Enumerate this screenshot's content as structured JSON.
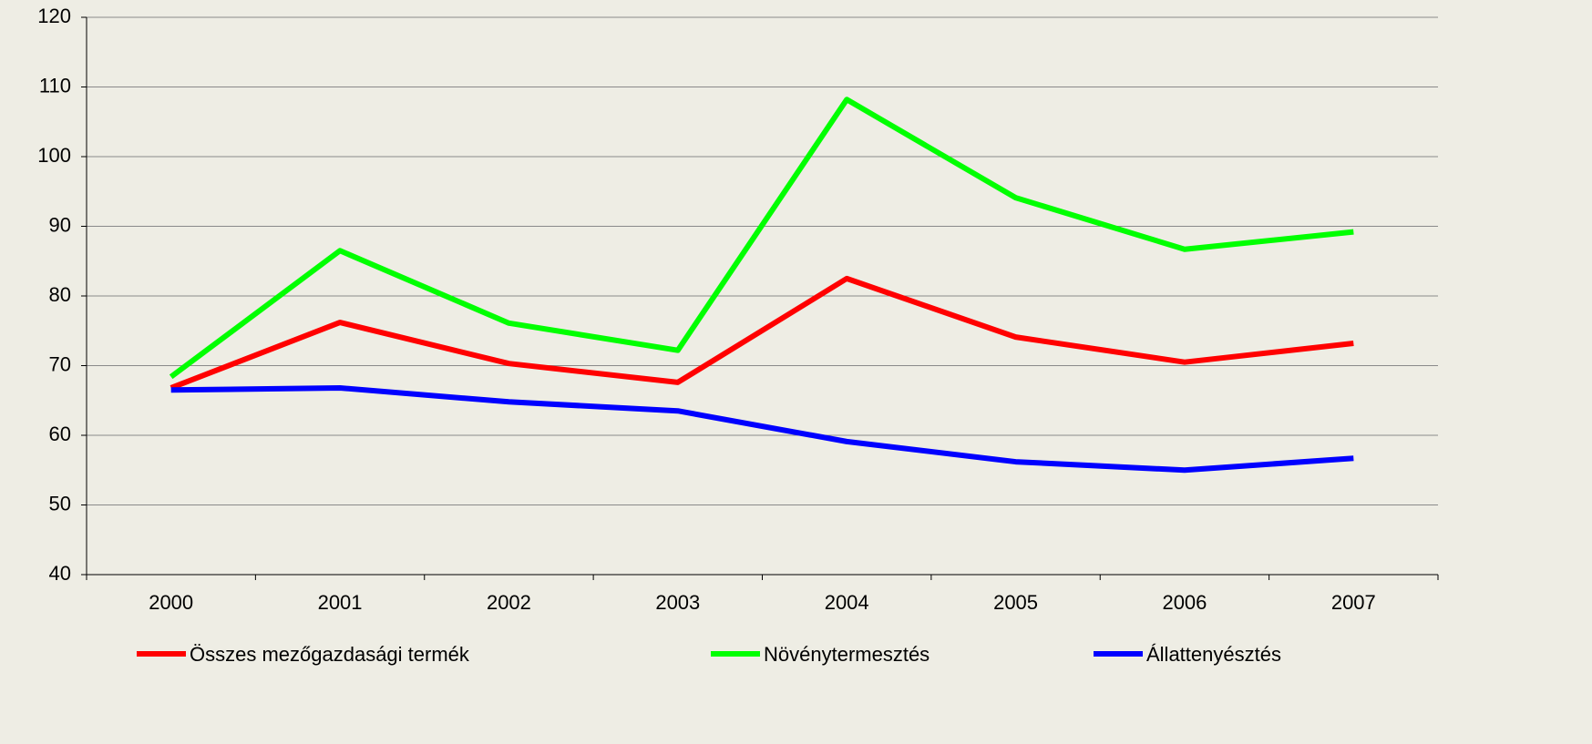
{
  "chart_data": {
    "type": "line",
    "categories": [
      "2000",
      "2001",
      "2002",
      "2003",
      "2004",
      "2005",
      "2006",
      "2007"
    ],
    "series": [
      {
        "name": "Összes mezőgazdasági termék",
        "color": "#ff0000",
        "values": [
          66.8,
          76.2,
          70.3,
          67.6,
          82.5,
          74.1,
          70.5,
          73.2
        ]
      },
      {
        "name": "Növénytermesztés",
        "color": "#00ff00",
        "values": [
          68.4,
          86.5,
          76.1,
          72.2,
          108.2,
          94.1,
          86.7,
          89.2
        ]
      },
      {
        "name": "Állattenyésztés",
        "color": "#0000ff",
        "values": [
          66.5,
          66.8,
          64.8,
          63.5,
          59.1,
          56.2,
          55.0,
          56.7
        ]
      }
    ],
    "ylim": [
      40,
      120
    ],
    "yticks": [
      40,
      50,
      60,
      70,
      80,
      90,
      100,
      110,
      120
    ],
    "grid": true,
    "legend": "bottom"
  }
}
